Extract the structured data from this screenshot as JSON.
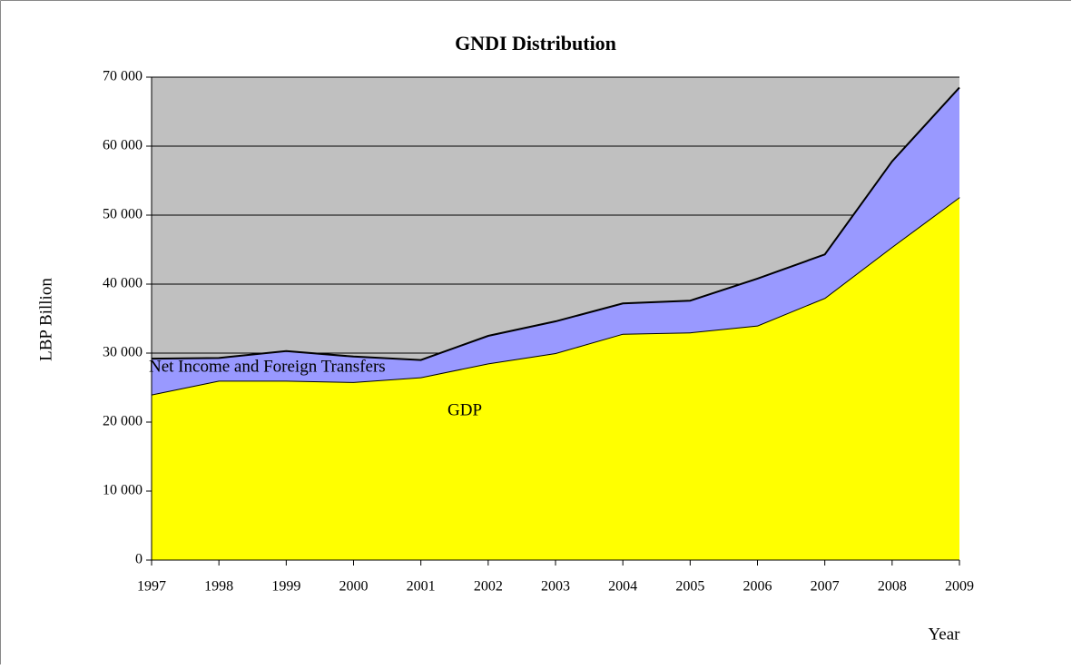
{
  "chart_data": {
    "type": "stacked_area",
    "title": "GNDI  Distribution",
    "y_label": "LBP Billion",
    "x_label": "Year",
    "categories": [
      "1997",
      "1998",
      "1999",
      "2000",
      "2001",
      "2002",
      "2003",
      "2004",
      "2005",
      "2006",
      "2007",
      "2008",
      "2009"
    ],
    "series": [
      {
        "name": "GDP",
        "color": "#ffff00",
        "values": [
          24000,
          26000,
          26000,
          25800,
          26500,
          28500,
          30000,
          32800,
          33000,
          34000,
          38000,
          45400,
          52600
        ]
      },
      {
        "name": "Net Income and Foreign Transfers",
        "color": "#9999ff",
        "values": [
          5200,
          3300,
          4300,
          3700,
          2500,
          4000,
          4600,
          4400,
          4600,
          6800,
          6300,
          12400,
          15900
        ]
      }
    ],
    "ylim": [
      0,
      70000
    ],
    "yticks": [
      0,
      {
        "value": 10000,
        "label": "10 000"
      },
      {
        "value": 20000,
        "label": "20 000"
      },
      {
        "value": 30000,
        "label": "30 000"
      },
      {
        "value": 40000,
        "label": "40 000"
      },
      {
        "value": 50000,
        "label": "50 000"
      },
      {
        "value": 60000,
        "label": "60 000"
      },
      {
        "value": 70000,
        "label": "70 000"
      }
    ],
    "grid": true,
    "plot_background": "#c0c0c0"
  }
}
